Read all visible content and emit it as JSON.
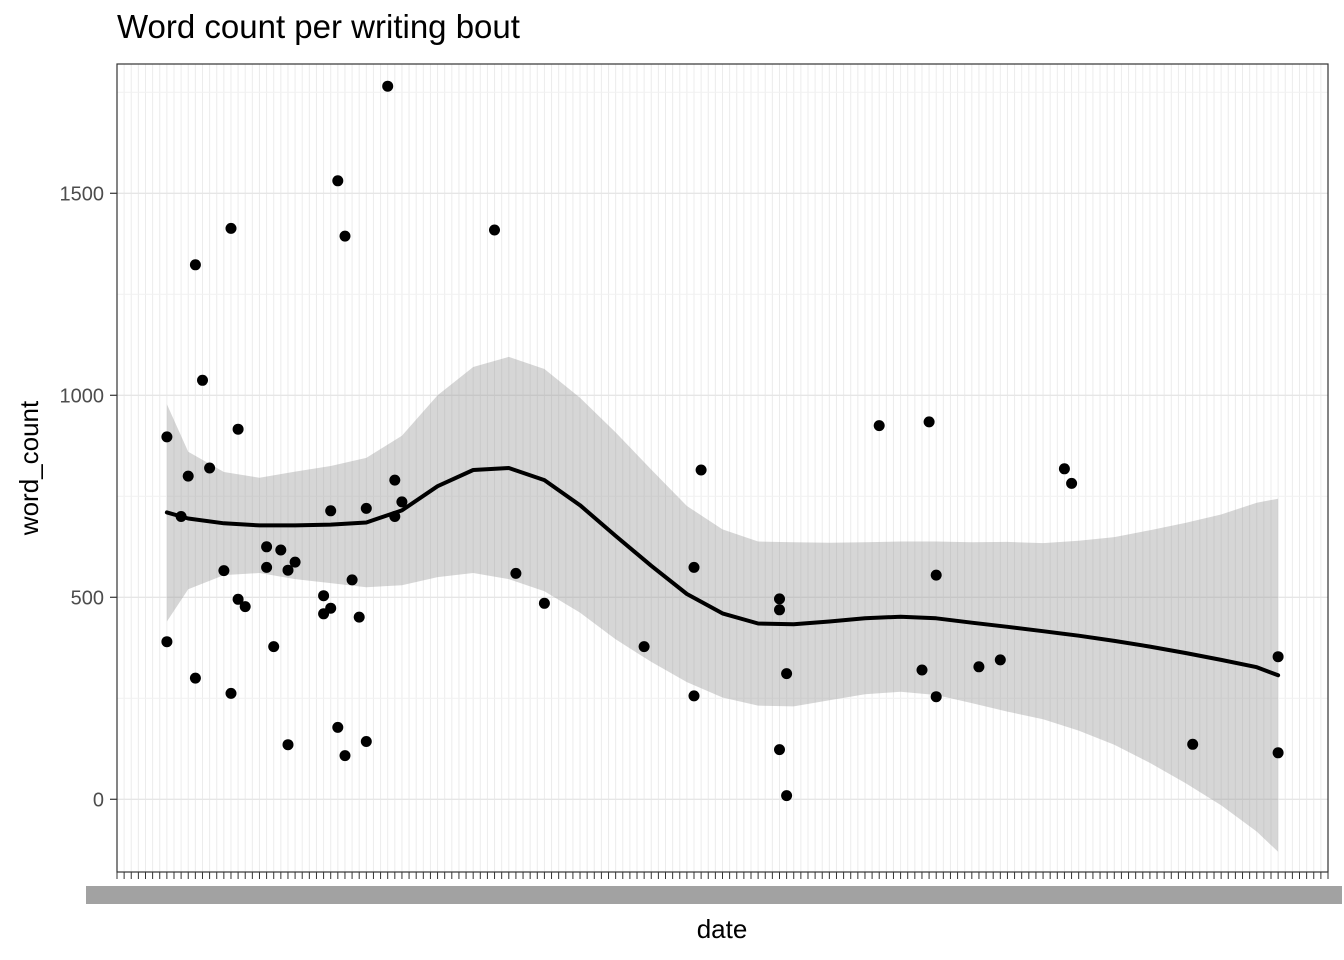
{
  "chart_data": {
    "type": "scatter",
    "title": "Word count per writing bout",
    "xlabel": "date",
    "ylabel": "word_count",
    "ylim": [
      -180,
      1820
    ],
    "y_ticks": [
      0,
      500,
      1000,
      1500
    ],
    "grid": true,
    "legend": "none",
    "x_axis_note": "categorical date axis; tick labels overlap and are illegible",
    "x_category_range": [
      0,
      170
    ],
    "points": [
      {
        "x": 7,
        "y": 897
      },
      {
        "x": 7,
        "y": 390
      },
      {
        "x": 9,
        "y": 700
      },
      {
        "x": 10,
        "y": 800
      },
      {
        "x": 11,
        "y": 1323
      },
      {
        "x": 11,
        "y": 300
      },
      {
        "x": 12,
        "y": 1037
      },
      {
        "x": 13,
        "y": 820
      },
      {
        "x": 15,
        "y": 566
      },
      {
        "x": 16,
        "y": 1413
      },
      {
        "x": 16,
        "y": 262
      },
      {
        "x": 17,
        "y": 916
      },
      {
        "x": 17,
        "y": 495
      },
      {
        "x": 18,
        "y": 477
      },
      {
        "x": 21,
        "y": 625
      },
      {
        "x": 21,
        "y": 574
      },
      {
        "x": 22,
        "y": 378
      },
      {
        "x": 23,
        "y": 617
      },
      {
        "x": 24,
        "y": 567
      },
      {
        "x": 24,
        "y": 135
      },
      {
        "x": 25,
        "y": 587
      },
      {
        "x": 29,
        "y": 504
      },
      {
        "x": 29,
        "y": 459
      },
      {
        "x": 30,
        "y": 714
      },
      {
        "x": 30,
        "y": 473
      },
      {
        "x": 31,
        "y": 1531
      },
      {
        "x": 31,
        "y": 178
      },
      {
        "x": 32,
        "y": 1394
      },
      {
        "x": 32,
        "y": 108
      },
      {
        "x": 33,
        "y": 543
      },
      {
        "x": 34,
        "y": 451
      },
      {
        "x": 35,
        "y": 720
      },
      {
        "x": 35,
        "y": 143
      },
      {
        "x": 38,
        "y": 1765
      },
      {
        "x": 39,
        "y": 790
      },
      {
        "x": 39,
        "y": 700
      },
      {
        "x": 40,
        "y": 736
      },
      {
        "x": 53,
        "y": 1409
      },
      {
        "x": 56,
        "y": 559
      },
      {
        "x": 60,
        "y": 485
      },
      {
        "x": 74,
        "y": 378
      },
      {
        "x": 81,
        "y": 574
      },
      {
        "x": 81,
        "y": 256
      },
      {
        "x": 82,
        "y": 815
      },
      {
        "x": 93,
        "y": 496
      },
      {
        "x": 93,
        "y": 469
      },
      {
        "x": 93,
        "y": 123
      },
      {
        "x": 94,
        "y": 311
      },
      {
        "x": 94,
        "y": 9
      },
      {
        "x": 107,
        "y": 925
      },
      {
        "x": 113,
        "y": 320
      },
      {
        "x": 114,
        "y": 934
      },
      {
        "x": 115,
        "y": 555
      },
      {
        "x": 115,
        "y": 254
      },
      {
        "x": 121,
        "y": 328
      },
      {
        "x": 124,
        "y": 345
      },
      {
        "x": 133,
        "y": 818
      },
      {
        "x": 134,
        "y": 782
      },
      {
        "x": 151,
        "y": 136
      },
      {
        "x": 163,
        "y": 353
      },
      {
        "x": 163,
        "y": 115
      }
    ],
    "smooth": {
      "x": [
        7,
        10,
        15,
        20,
        25,
        30,
        35,
        40,
        45,
        50,
        55,
        60,
        65,
        70,
        75,
        80,
        85,
        90,
        95,
        100,
        105,
        110,
        115,
        120,
        125,
        130,
        135,
        140,
        145,
        150,
        155,
        160,
        163
      ],
      "y": [
        710,
        695,
        683,
        678,
        678,
        680,
        685,
        715,
        775,
        815,
        820,
        790,
        728,
        652,
        578,
        508,
        460,
        435,
        433,
        440,
        448,
        452,
        448,
        437,
        427,
        416,
        405,
        392,
        378,
        362,
        345,
        327,
        307
      ],
      "lower": [
        440,
        520,
        555,
        560,
        545,
        535,
        525,
        530,
        550,
        560,
        545,
        515,
        462,
        396,
        340,
        290,
        252,
        232,
        230,
        245,
        260,
        266,
        258,
        238,
        217,
        198,
        170,
        135,
        90,
        40,
        -15,
        -80,
        -130
      ],
      "upper": [
        978,
        860,
        810,
        796,
        811,
        825,
        845,
        900,
        1000,
        1070,
        1095,
        1065,
        994,
        908,
        816,
        726,
        668,
        638,
        636,
        635,
        636,
        638,
        638,
        636,
        637,
        634,
        640,
        649,
        666,
        684,
        705,
        734,
        744
      ]
    }
  }
}
